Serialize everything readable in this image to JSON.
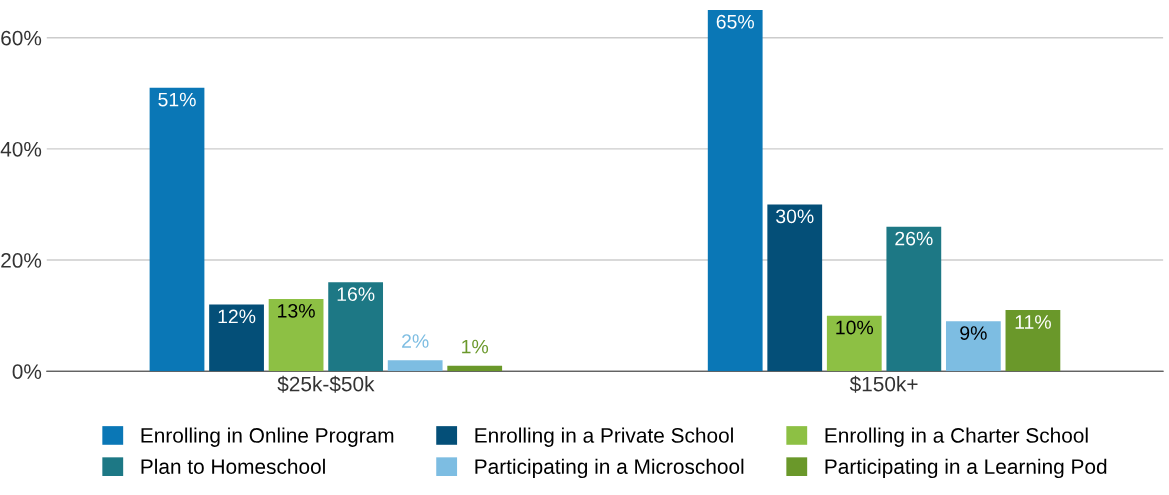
{
  "chart_data": {
    "type": "bar",
    "categories": [
      "$25k-$50k",
      "$150k+"
    ],
    "series": [
      {
        "name": "Enrolling in Online Program",
        "color": "#0a77b6",
        "values": [
          51,
          65
        ],
        "value_labels": [
          "51%",
          "65%"
        ]
      },
      {
        "name": "Enrolling in a Private School",
        "color": "#044f78",
        "values": [
          12,
          30
        ],
        "value_labels": [
          "12%",
          "30%"
        ]
      },
      {
        "name": "Enrolling in a Charter School",
        "color": "#8dc044",
        "values": [
          13,
          10
        ],
        "value_labels": [
          "13%",
          "10%"
        ]
      },
      {
        "name": "Plan to Homeschool",
        "color": "#1d7885",
        "values": [
          16,
          26
        ],
        "value_labels": [
          "16%",
          "26%"
        ]
      },
      {
        "name": "Participating in a Microschool",
        "color": "#7dbde2",
        "values": [
          2,
          9
        ],
        "value_labels": [
          "2%",
          "9%"
        ]
      },
      {
        "name": "Participating in a Learning Pod",
        "color": "#6a982a",
        "values": [
          1,
          11
        ],
        "value_labels": [
          "1%",
          "11%"
        ]
      }
    ],
    "ylim": [
      0,
      65
    ],
    "yticks": [
      {
        "value": 0,
        "label": "0%"
      },
      {
        "value": 20,
        "label": "20%"
      },
      {
        "value": 40,
        "label": "40%"
      },
      {
        "value": 60,
        "label": "60%"
      }
    ],
    "grid": "y",
    "legend": "bottom"
  }
}
